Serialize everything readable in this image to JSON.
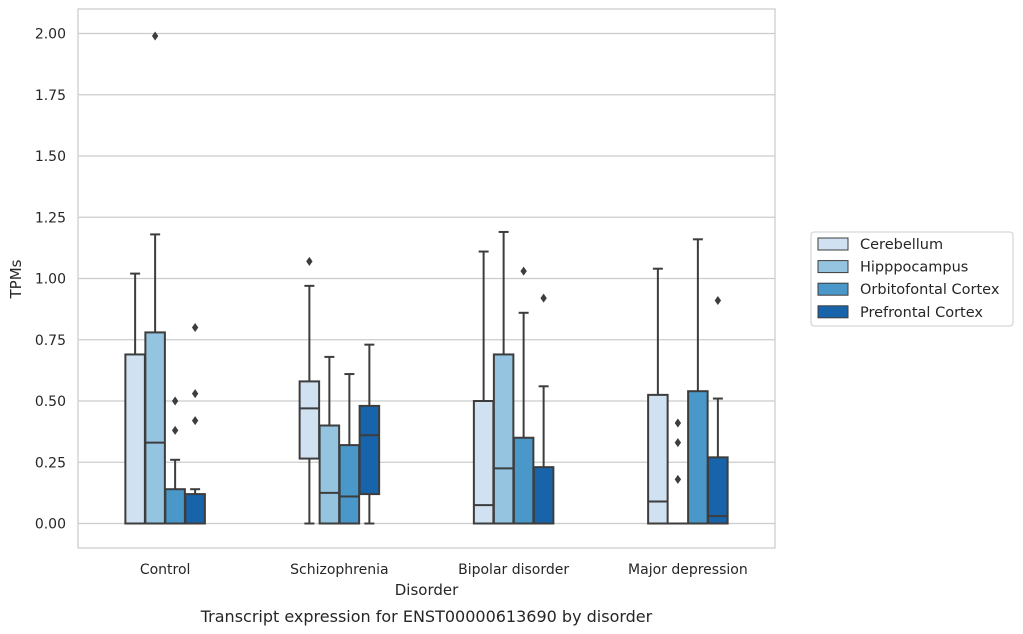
{
  "chart_data": {
    "type": "box",
    "caption": "Transcript expression for ENST00000613690 by disorder",
    "xlabel": "Disorder",
    "ylabel": "TPMs",
    "ylim": [
      -0.1,
      2.1
    ],
    "yticks": [
      0.0,
      0.25,
      0.5,
      0.75,
      1.0,
      1.25,
      1.5,
      1.75,
      2.0
    ],
    "ytick_labels": [
      "0.00",
      "0.25",
      "0.50",
      "0.75",
      "1.00",
      "1.25",
      "1.50",
      "1.75",
      "2.00"
    ],
    "grid": "horizontal",
    "legend_position": "right",
    "categories": [
      "Control",
      "Schizophrenia",
      "Bipolar disorder",
      "Major depression"
    ],
    "series": [
      {
        "name": "Cerebellum",
        "color": "#d0e1f2",
        "boxes": [
          {
            "whislo": 0.0,
            "q1": 0.0,
            "med": 0.0,
            "q3": 0.69,
            "whishi": 1.02,
            "fliers": []
          },
          {
            "whislo": 0.0,
            "q1": 0.265,
            "med": 0.47,
            "q3": 0.58,
            "whishi": 0.97,
            "fliers": [
              1.07
            ]
          },
          {
            "whislo": 0.0,
            "q1": 0.0,
            "med": 0.075,
            "q3": 0.5,
            "whishi": 1.11,
            "fliers": []
          },
          {
            "whislo": 0.0,
            "q1": 0.0,
            "med": 0.09,
            "q3": 0.525,
            "whishi": 1.04,
            "fliers": []
          }
        ]
      },
      {
        "name": "Hipppocampus",
        "color": "#94c4df",
        "boxes": [
          {
            "whislo": 0.0,
            "q1": 0.0,
            "med": 0.33,
            "q3": 0.78,
            "whishi": 1.18,
            "fliers": [
              1.99
            ]
          },
          {
            "whislo": 0.0,
            "q1": 0.0,
            "med": 0.125,
            "q3": 0.4,
            "whishi": 0.68,
            "fliers": []
          },
          {
            "whislo": 0.0,
            "q1": 0.0,
            "med": 0.225,
            "q3": 0.69,
            "whishi": 1.19,
            "fliers": []
          },
          {
            "whislo": 0.0,
            "q1": 0.0,
            "med": 0.0,
            "q3": 0.0,
            "whishi": 0.0,
            "fliers": [
              0.41,
              0.33,
              0.18
            ]
          }
        ]
      },
      {
        "name": "Orbitofontal Cortex",
        "color": "#4a98c9",
        "boxes": [
          {
            "whislo": 0.0,
            "q1": 0.0,
            "med": 0.0,
            "q3": 0.14,
            "whishi": 0.26,
            "fliers": [
              0.5,
              0.38
            ]
          },
          {
            "whislo": 0.0,
            "q1": 0.0,
            "med": 0.11,
            "q3": 0.32,
            "whishi": 0.61,
            "fliers": []
          },
          {
            "whislo": 0.0,
            "q1": 0.0,
            "med": 0.0,
            "q3": 0.35,
            "whishi": 0.86,
            "fliers": [
              1.03
            ]
          },
          {
            "whislo": 0.0,
            "q1": 0.0,
            "med": 0.0,
            "q3": 0.54,
            "whishi": 1.16,
            "fliers": []
          }
        ]
      },
      {
        "name": "Prefrontal Cortex",
        "color": "#1764ab",
        "boxes": [
          {
            "whislo": 0.0,
            "q1": 0.0,
            "med": 0.0,
            "q3": 0.12,
            "whishi": 0.14,
            "fliers": [
              0.8,
              0.53,
              0.42
            ]
          },
          {
            "whislo": 0.0,
            "q1": 0.12,
            "med": 0.36,
            "q3": 0.48,
            "whishi": 0.73,
            "fliers": []
          },
          {
            "whislo": 0.0,
            "q1": 0.0,
            "med": 0.0,
            "q3": 0.23,
            "whishi": 0.56,
            "fliers": [
              0.92
            ]
          },
          {
            "whislo": 0.0,
            "q1": 0.0,
            "med": 0.03,
            "q3": 0.27,
            "whishi": 0.51,
            "fliers": [
              0.91
            ]
          }
        ]
      }
    ]
  }
}
